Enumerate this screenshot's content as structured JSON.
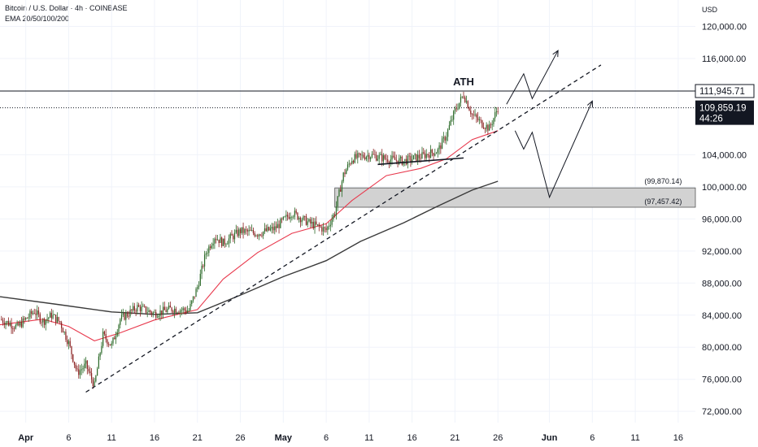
{
  "header": {
    "title": "Bitcoin / U.S. Dollar · 4h · COINBASE",
    "indicators": "EMA 20/50/100/200",
    "currency": "USD"
  },
  "colors": {
    "ema_fast": "#e8394d",
    "ema_slow": "#3a3a3a",
    "candle_up": "#2d6b2a",
    "candle_down": "#8a2020",
    "zone_fill": "#d2d2d2",
    "axis_text": "#131722",
    "price_tag_bg": "#131722",
    "price_tag_text": "#ffffff"
  },
  "chart_data": {
    "type": "candlestick",
    "title": "",
    "xlabel": "",
    "ylabel": "",
    "x_ticks": [
      "Apr",
      "6",
      "11",
      "16",
      "21",
      "26",
      "May",
      "6",
      "11",
      "16",
      "21",
      "26",
      "Jun",
      "6",
      "11",
      "16"
    ],
    "x_tick_dates": [
      "2025-04-01",
      "2025-04-06",
      "2025-04-11",
      "2025-04-16",
      "2025-04-21",
      "2025-04-26",
      "2025-05-01",
      "2025-05-06",
      "2025-05-11",
      "2025-05-16",
      "2025-05-21",
      "2025-05-26",
      "2025-06-01",
      "2025-06-06",
      "2025-06-11",
      "2025-06-16"
    ],
    "y_ticks": [
      "120,000.00",
      "116,000.00",
      "104,000.00",
      "100,000.00",
      "96,000.00",
      "92,000.00",
      "88,000.00",
      "84,000.00",
      "80,000.00",
      "76,000.00",
      "72,000.00"
    ],
    "y_tick_values": [
      120000,
      116000,
      104000,
      100000,
      96000,
      92000,
      88000,
      84000,
      80000,
      76000,
      72000
    ],
    "ylim": [
      70600,
      123300
    ],
    "xlim": [
      "2025-03-29",
      "2025-06-18"
    ],
    "grid": true,
    "price_path": [
      [
        "2025-03-29",
        83500
      ],
      [
        "2025-03-31",
        82500
      ],
      [
        "2025-04-02",
        84500
      ],
      [
        "2025-04-03",
        83200
      ],
      [
        "2025-04-04",
        84000
      ],
      [
        "2025-04-05",
        83100
      ],
      [
        "2025-04-06",
        80500
      ],
      [
        "2025-04-07",
        76800
      ],
      [
        "2025-04-08",
        77800
      ],
      [
        "2025-04-09",
        75200
      ],
      [
        "2025-04-10",
        81500
      ],
      [
        "2025-04-11",
        80200
      ],
      [
        "2025-04-12",
        83500
      ],
      [
        "2025-04-14",
        85000
      ],
      [
        "2025-04-16",
        84200
      ],
      [
        "2025-04-18",
        84800
      ],
      [
        "2025-04-20",
        84600
      ],
      [
        "2025-04-21",
        87500
      ],
      [
        "2025-04-22",
        91800
      ],
      [
        "2025-04-23",
        93800
      ],
      [
        "2025-04-24",
        93000
      ],
      [
        "2025-04-26",
        94500
      ],
      [
        "2025-04-28",
        94200
      ],
      [
        "2025-04-30",
        94800
      ],
      [
        "2025-05-02",
        96800
      ],
      [
        "2025-05-04",
        95500
      ],
      [
        "2025-05-06",
        94600
      ],
      [
        "2025-05-07",
        96800
      ],
      [
        "2025-05-08",
        101500
      ],
      [
        "2025-05-09",
        103500
      ],
      [
        "2025-05-11",
        104000
      ],
      [
        "2025-05-13",
        103500
      ],
      [
        "2025-05-15",
        103200
      ],
      [
        "2025-05-17",
        103800
      ],
      [
        "2025-05-19",
        104500
      ],
      [
        "2025-05-20",
        106500
      ],
      [
        "2025-05-21",
        109500
      ],
      [
        "2025-05-22",
        111500
      ],
      [
        "2025-05-23",
        109000
      ],
      [
        "2025-05-24",
        108000
      ],
      [
        "2025-05-25",
        107300
      ],
      [
        "2025-05-26",
        109859.19
      ]
    ],
    "series": [
      {
        "name": "EMA",
        "values": [
          [
            "2025-03-29",
            82800
          ],
          [
            "2025-04-03",
            83500
          ],
          [
            "2025-04-06",
            82600
          ],
          [
            "2025-04-09",
            80800
          ],
          [
            "2025-04-12",
            81800
          ],
          [
            "2025-04-16",
            83400
          ],
          [
            "2025-04-21",
            84700
          ],
          [
            "2025-04-24",
            88500
          ],
          [
            "2025-04-28",
            91800
          ],
          [
            "2025-05-02",
            94200
          ],
          [
            "2025-05-06",
            95400
          ],
          [
            "2025-05-09",
            98300
          ],
          [
            "2025-05-13",
            101400
          ],
          [
            "2025-05-17",
            102300
          ],
          [
            "2025-05-20",
            103500
          ],
          [
            "2025-05-23",
            105900
          ],
          [
            "2025-05-26",
            107000
          ]
        ]
      },
      {
        "name": "EMA",
        "values": [
          [
            "2025-03-29",
            86300
          ],
          [
            "2025-04-05",
            85300
          ],
          [
            "2025-04-11",
            84400
          ],
          [
            "2025-04-16",
            84100
          ],
          [
            "2025-04-21",
            84300
          ],
          [
            "2025-04-26",
            86500
          ],
          [
            "2025-05-01",
            88800
          ],
          [
            "2025-05-06",
            90800
          ],
          [
            "2025-05-10",
            93200
          ],
          [
            "2025-05-15",
            95500
          ],
          [
            "2025-05-19",
            97600
          ],
          [
            "2025-05-23",
            99600
          ],
          [
            "2025-05-26",
            100700
          ]
        ]
      }
    ],
    "annotations": {
      "ath_label": "ATH",
      "ath_level": 111945.71,
      "ath_tag": "111,945.71",
      "current_price": 109859.19,
      "current_tag": "109,859.19",
      "countdown": "44:26",
      "zone_top": 99870.14,
      "zone_top_label": "(99,870.14)",
      "zone_bottom": 97457.42,
      "zone_bottom_label": "(97,457.42)",
      "trendline": [
        [
          "2025-04-08",
          74400
        ],
        [
          "2025-06-07",
          115200
        ]
      ],
      "small_trendline": [
        [
          "2025-05-12",
          102800
        ],
        [
          "2025-05-22",
          103600
        ]
      ],
      "bull_path": [
        [
          "2025-05-27",
          110300
        ],
        [
          "2025-05-29",
          114100
        ],
        [
          "2025-05-30",
          111000
        ],
        [
          "2025-06-02",
          117000
        ]
      ],
      "bear_path": [
        [
          "2025-05-28",
          107000
        ],
        [
          "2025-05-29",
          104700
        ],
        [
          "2025-05-30",
          106800
        ],
        [
          "2025-06-01",
          98700
        ],
        [
          "2025-06-06",
          110700
        ]
      ]
    }
  }
}
